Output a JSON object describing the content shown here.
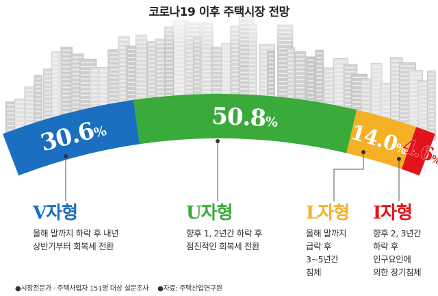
{
  "title": "코로나19 이후 주택시장 전망",
  "chart_data": {
    "type": "bar",
    "subtype": "stacked-arc",
    "unit": "%",
    "series": [
      {
        "name": "V자형",
        "value": 30.6,
        "display": "30.6",
        "color": "#1a6fc0",
        "text_color": "#ffffff",
        "description": "올해 말까지 하락 후 내년\n상반기부터 회복세 전환"
      },
      {
        "name": "U자형",
        "value": 50.8,
        "display": "50.8",
        "color": "#3aaa3a",
        "text_color": "#ffffff",
        "description": "향후 1, 2년간 하락 후\n점진적인 회복세 전환"
      },
      {
        "name": "L자형",
        "value": 14.0,
        "display": "14.0",
        "color": "#f5b025",
        "text_color": "#ffffff",
        "description": "올해 말까지\n급락 후\n3~5년간\n침체"
      },
      {
        "name": "I자형",
        "value": 4.6,
        "display": "4.6",
        "color": "#e3131b",
        "text_color": "#e3131b",
        "description": "향후 2, 3년간\n하락 후\n인구요인에\n의한 장기침체"
      }
    ]
  },
  "footer": {
    "survey": "●시장전문가 · 주택사업자 151명 대상 설문조사",
    "source": "●자료: 주택산업연구원"
  }
}
